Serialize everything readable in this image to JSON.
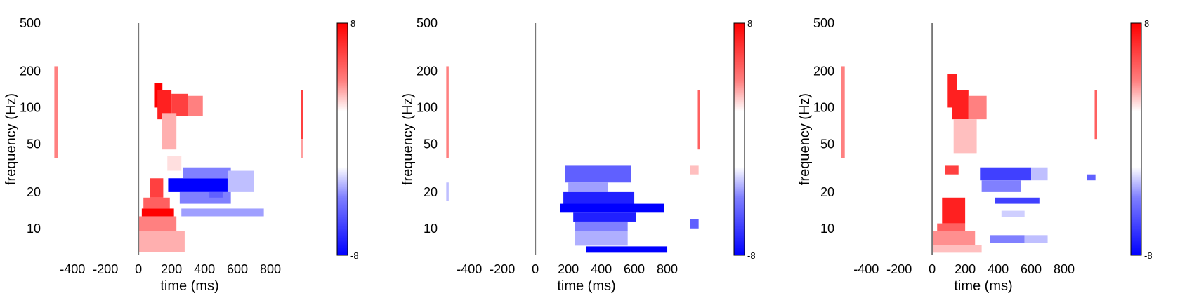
{
  "chart_data": [
    {
      "type": "heatmap",
      "title": "",
      "xlabel": "time (ms)",
      "ylabel": "frequency (Hz)",
      "xlim": [
        -550,
        1000
      ],
      "ylim": [
        6,
        500
      ],
      "yscale": "log",
      "xticks": [
        -400,
        -200,
        0,
        200,
        400,
        600,
        800
      ],
      "yticks": [
        10,
        20,
        50,
        100,
        200,
        500
      ],
      "event_line_x": 0,
      "colorbar": {
        "min": -8,
        "max": 8,
        "labels": [
          "8",
          "-8"
        ]
      },
      "blobs": [
        {
          "t": [
            -510,
            -490
          ],
          "f": [
            38,
            220
          ],
          "v": 4
        },
        {
          "t": [
            95,
            145
          ],
          "f": [
            100,
            160
          ],
          "v": 8
        },
        {
          "t": [
            115,
            200
          ],
          "f": [
            80,
            140
          ],
          "v": 7
        },
        {
          "t": [
            200,
            300
          ],
          "f": [
            85,
            130
          ],
          "v": 6
        },
        {
          "t": [
            300,
            390
          ],
          "f": [
            85,
            125
          ],
          "v": 4
        },
        {
          "t": [
            140,
            230
          ],
          "f": [
            45,
            90
          ],
          "v": 2.5
        },
        {
          "t": [
            175,
            260
          ],
          "f": [
            30,
            40
          ],
          "v": 1
        },
        {
          "t": [
            70,
            150
          ],
          "f": [
            18,
            26
          ],
          "v": 6
        },
        {
          "t": [
            20,
            215
          ],
          "f": [
            12.6,
            14.6
          ],
          "v": 10
        },
        {
          "t": [
            30,
            190
          ],
          "f": [
            14.6,
            18
          ],
          "v": 5
        },
        {
          "t": [
            0,
            230
          ],
          "f": [
            9.5,
            12.6
          ],
          "v": 4
        },
        {
          "t": [
            0,
            280
          ],
          "f": [
            6.4,
            9.5
          ],
          "v": 2.5
        },
        {
          "t": [
            180,
            540
          ],
          "f": [
            20,
            26
          ],
          "v": -8
        },
        {
          "t": [
            270,
            560
          ],
          "f": [
            26,
            32
          ],
          "v": -4
        },
        {
          "t": [
            540,
            700
          ],
          "f": [
            20,
            30
          ],
          "v": -2
        },
        {
          "t": [
            250,
            560
          ],
          "f": [
            16,
            20
          ],
          "v": -4
        },
        {
          "t": [
            260,
            760
          ],
          "f": [
            12.6,
            14.6
          ],
          "v": -3
        },
        {
          "t": [
            430,
            510
          ],
          "f": [
            18,
            20
          ],
          "v": -5
        },
        {
          "t": [
            985,
            1000
          ],
          "f": [
            55,
            140
          ],
          "v": 6
        },
        {
          "t": [
            985,
            1000
          ],
          "f": [
            38,
            55
          ],
          "v": 3
        }
      ]
    },
    {
      "type": "heatmap",
      "title": "",
      "xlabel": "time (ms)",
      "ylabel": "frequency (Hz)",
      "xlim": [
        -550,
        1000
      ],
      "ylim": [
        6,
        500
      ],
      "yscale": "log",
      "xticks": [
        -400,
        -200,
        0,
        200,
        400,
        600,
        800
      ],
      "yticks": [
        10,
        20,
        50,
        100,
        200,
        500
      ],
      "event_line_x": 0,
      "colorbar": {
        "min": -8,
        "max": 8,
        "labels": [
          "8",
          "-8"
        ]
      },
      "blobs": [
        {
          "t": [
            -540,
            -525
          ],
          "f": [
            38,
            220
          ],
          "v": 4
        },
        {
          "t": [
            -540,
            -525
          ],
          "f": [
            17,
            24
          ],
          "v": -2
        },
        {
          "t": [
            180,
            580
          ],
          "f": [
            24,
            33
          ],
          "v": -5
        },
        {
          "t": [
            200,
            440
          ],
          "f": [
            20,
            24
          ],
          "v": -3
        },
        {
          "t": [
            170,
            600
          ],
          "f": [
            15,
            20
          ],
          "v": -7
        },
        {
          "t": [
            150,
            780
          ],
          "f": [
            13.5,
            16
          ],
          "v": -9
        },
        {
          "t": [
            230,
            610
          ],
          "f": [
            11.4,
            13.5
          ],
          "v": -7
        },
        {
          "t": [
            240,
            560
          ],
          "f": [
            9.5,
            11.4
          ],
          "v": -4
        },
        {
          "t": [
            240,
            560
          ],
          "f": [
            7.2,
            9.5
          ],
          "v": -2.5
        },
        {
          "t": [
            310,
            800
          ],
          "f": [
            6.3,
            7.1
          ],
          "v": -8
        },
        {
          "t": [
            940,
            990
          ],
          "f": [
            10,
            12
          ],
          "v": -5
        },
        {
          "t": [
            940,
            990
          ],
          "f": [
            28,
            33
          ],
          "v": 2
        },
        {
          "t": [
            985,
            1000
          ],
          "f": [
            45,
            140
          ],
          "v": 5
        }
      ]
    },
    {
      "type": "heatmap",
      "title": "",
      "xlabel": "time (ms)",
      "ylabel": "frequency (Hz)",
      "xlim": [
        -550,
        1000
      ],
      "ylim": [
        6,
        500
      ],
      "yscale": "log",
      "xticks": [
        -400,
        -200,
        0,
        200,
        400,
        600,
        800
      ],
      "yticks": [
        10,
        20,
        50,
        100,
        200,
        500
      ],
      "event_line_x": 0,
      "colorbar": {
        "min": -8,
        "max": 8,
        "labels": [
          "8",
          "-8"
        ]
      },
      "blobs": [
        {
          "t": [
            -550,
            -530
          ],
          "f": [
            38,
            220
          ],
          "v": 4
        },
        {
          "t": [
            90,
            150
          ],
          "f": [
            100,
            190
          ],
          "v": 7
        },
        {
          "t": [
            120,
            220
          ],
          "f": [
            80,
            140
          ],
          "v": 7
        },
        {
          "t": [
            220,
            330
          ],
          "f": [
            80,
            125
          ],
          "v": 4
        },
        {
          "t": [
            130,
            270
          ],
          "f": [
            42,
            80
          ],
          "v": 2
        },
        {
          "t": [
            80,
            160
          ],
          "f": [
            28,
            33
          ],
          "v": 6
        },
        {
          "t": [
            290,
            600
          ],
          "f": [
            25,
            32
          ],
          "v": -6
        },
        {
          "t": [
            600,
            700
          ],
          "f": [
            25,
            32
          ],
          "v": -2
        },
        {
          "t": [
            300,
            540
          ],
          "f": [
            20,
            25
          ],
          "v": -4
        },
        {
          "t": [
            380,
            650
          ],
          "f": [
            16,
            18
          ],
          "v": -6
        },
        {
          "t": [
            420,
            560
          ],
          "f": [
            12.5,
            14
          ],
          "v": -1.5
        },
        {
          "t": [
            60,
            200
          ],
          "f": [
            11,
            18
          ],
          "v": 7
        },
        {
          "t": [
            30,
            200
          ],
          "f": [
            9.5,
            11
          ],
          "v": 5
        },
        {
          "t": [
            0,
            260
          ],
          "f": [
            7.3,
            9.5
          ],
          "v": 3.5
        },
        {
          "t": [
            0,
            300
          ],
          "f": [
            6.3,
            7.3
          ],
          "v": 2
        },
        {
          "t": [
            350,
            560
          ],
          "f": [
            7.6,
            8.8
          ],
          "v": -4
        },
        {
          "t": [
            560,
            700
          ],
          "f": [
            7.6,
            8.8
          ],
          "v": -2
        },
        {
          "t": [
            940,
            990
          ],
          "f": [
            25,
            28
          ],
          "v": -5
        },
        {
          "t": [
            985,
            1000
          ],
          "f": [
            55,
            140
          ],
          "v": 5
        }
      ]
    }
  ]
}
